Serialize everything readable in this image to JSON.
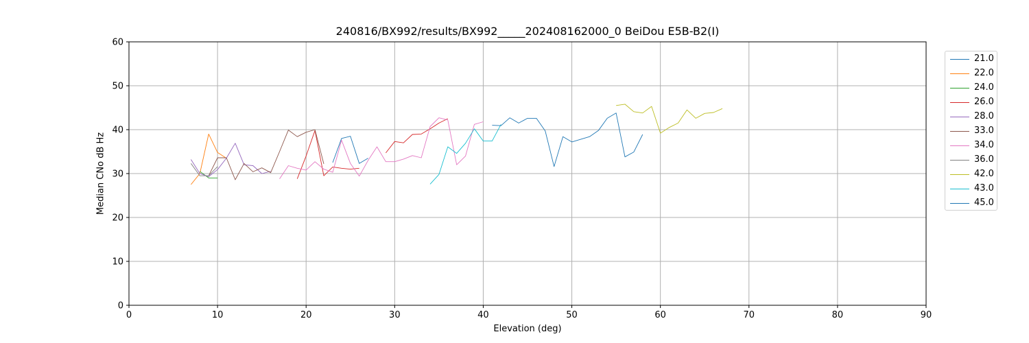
{
  "chart_data": {
    "type": "line",
    "title": "240816/BX992/results/BX992_____202408162000_0 BeiDou E5B-B2(I)",
    "xlabel": "Elevation (deg)",
    "ylabel": "Median CNo dB Hz",
    "xlim": [
      0,
      90
    ],
    "ylim": [
      0,
      60
    ],
    "xticks": [
      0,
      10,
      20,
      30,
      40,
      50,
      60,
      70,
      80,
      90
    ],
    "yticks": [
      0,
      10,
      20,
      30,
      40,
      50,
      60
    ],
    "grid": true,
    "legend_position": "outside-right",
    "series": [
      {
        "name": "21.0",
        "color": "#1f77b4",
        "x": [
          23,
          24,
          25,
          26,
          27
        ],
        "y": [
          32.5,
          38.0,
          38.5,
          32.3,
          33.5
        ]
      },
      {
        "name": "22.0",
        "color": "#ff7f0e",
        "x": [
          7,
          8,
          9,
          10,
          11
        ],
        "y": [
          27.5,
          30.0,
          39.0,
          34.8,
          33.5
        ]
      },
      {
        "name": "24.0",
        "color": "#2ca02c",
        "x": [
          8,
          9,
          10
        ],
        "y": [
          30.5,
          29.0,
          29.0
        ]
      },
      {
        "name": "26.0",
        "color": "#d62728",
        "x": [
          19,
          20,
          21,
          22,
          23,
          24,
          25,
          26,
          27,
          28,
          29,
          30,
          31,
          32,
          33,
          34,
          35,
          36
        ],
        "y": [
          28.8,
          34.0,
          39.8,
          29.5,
          31.5,
          31.2,
          31.0,
          31.2,
          null,
          null,
          34.7,
          37.3,
          37.0,
          38.9,
          39.0,
          40.2,
          41.5,
          42.5
        ]
      },
      {
        "name": "28.0",
        "color": "#9467bd",
        "x": [
          7,
          8,
          9,
          10,
          11,
          12,
          13,
          14,
          15,
          16
        ],
        "y": [
          33.2,
          30.0,
          29.3,
          30.9,
          33.5,
          36.9,
          32.0,
          31.8,
          30.0,
          30.5
        ]
      },
      {
        "name": "33.0",
        "color": "#8c564b",
        "x": [
          9,
          10,
          11,
          12,
          13,
          14,
          15,
          16,
          17,
          18,
          19,
          20,
          21,
          22
        ],
        "y": [
          29.5,
          33.6,
          33.6,
          28.6,
          32.3,
          30.4,
          31.3,
          30.2,
          35.0,
          39.9,
          38.4,
          39.4,
          40.0,
          32.2
        ]
      },
      {
        "name": "34.0",
        "color": "#e377c2",
        "x": [
          17,
          18,
          19,
          20,
          21,
          22,
          23,
          24,
          25,
          26,
          27,
          28,
          29,
          30,
          31,
          32,
          33,
          34,
          35,
          36,
          37,
          38,
          39,
          40
        ],
        "y": [
          28.8,
          31.8,
          31.2,
          30.8,
          32.7,
          31.0,
          30.3,
          37.6,
          32.3,
          29.4,
          33.0,
          36.1,
          32.7,
          32.7,
          33.3,
          34.1,
          33.6,
          40.7,
          42.7,
          42.2,
          32.0,
          34.0,
          41.2,
          41.8
        ]
      },
      {
        "name": "36.0",
        "color": "#7f7f7f",
        "x": [
          7,
          8,
          9,
          10
        ],
        "y": [
          32.3,
          29.5,
          29.5,
          31.6
        ]
      },
      {
        "name": "42.0",
        "color": "#bcbd22",
        "x": [
          55,
          56,
          57,
          58,
          59,
          60,
          61,
          62,
          63,
          64,
          65,
          66,
          67
        ],
        "y": [
          45.5,
          45.8,
          44.1,
          43.8,
          45.3,
          39.2,
          40.5,
          41.5,
          44.5,
          42.6,
          43.7,
          43.9,
          44.8
        ]
      },
      {
        "name": "43.0",
        "color": "#17becf",
        "x": [
          34,
          35,
          36,
          37,
          38,
          39,
          40,
          41,
          42
        ],
        "y": [
          27.6,
          29.8,
          36.1,
          34.6,
          36.9,
          40.2,
          37.4,
          37.4,
          41.2
        ]
      },
      {
        "name": "45.0",
        "color": "#1f77b4",
        "x": [
          41,
          42,
          43,
          44,
          45,
          46,
          47,
          48,
          49,
          50,
          51,
          52,
          53,
          54,
          55,
          56,
          57,
          58
        ],
        "y": [
          41.0,
          40.9,
          42.7,
          41.5,
          42.6,
          42.6,
          39.7,
          31.6,
          38.4,
          37.2,
          37.8,
          38.4,
          39.8,
          42.6,
          43.8,
          33.8,
          34.9,
          38.9
        ]
      }
    ]
  }
}
